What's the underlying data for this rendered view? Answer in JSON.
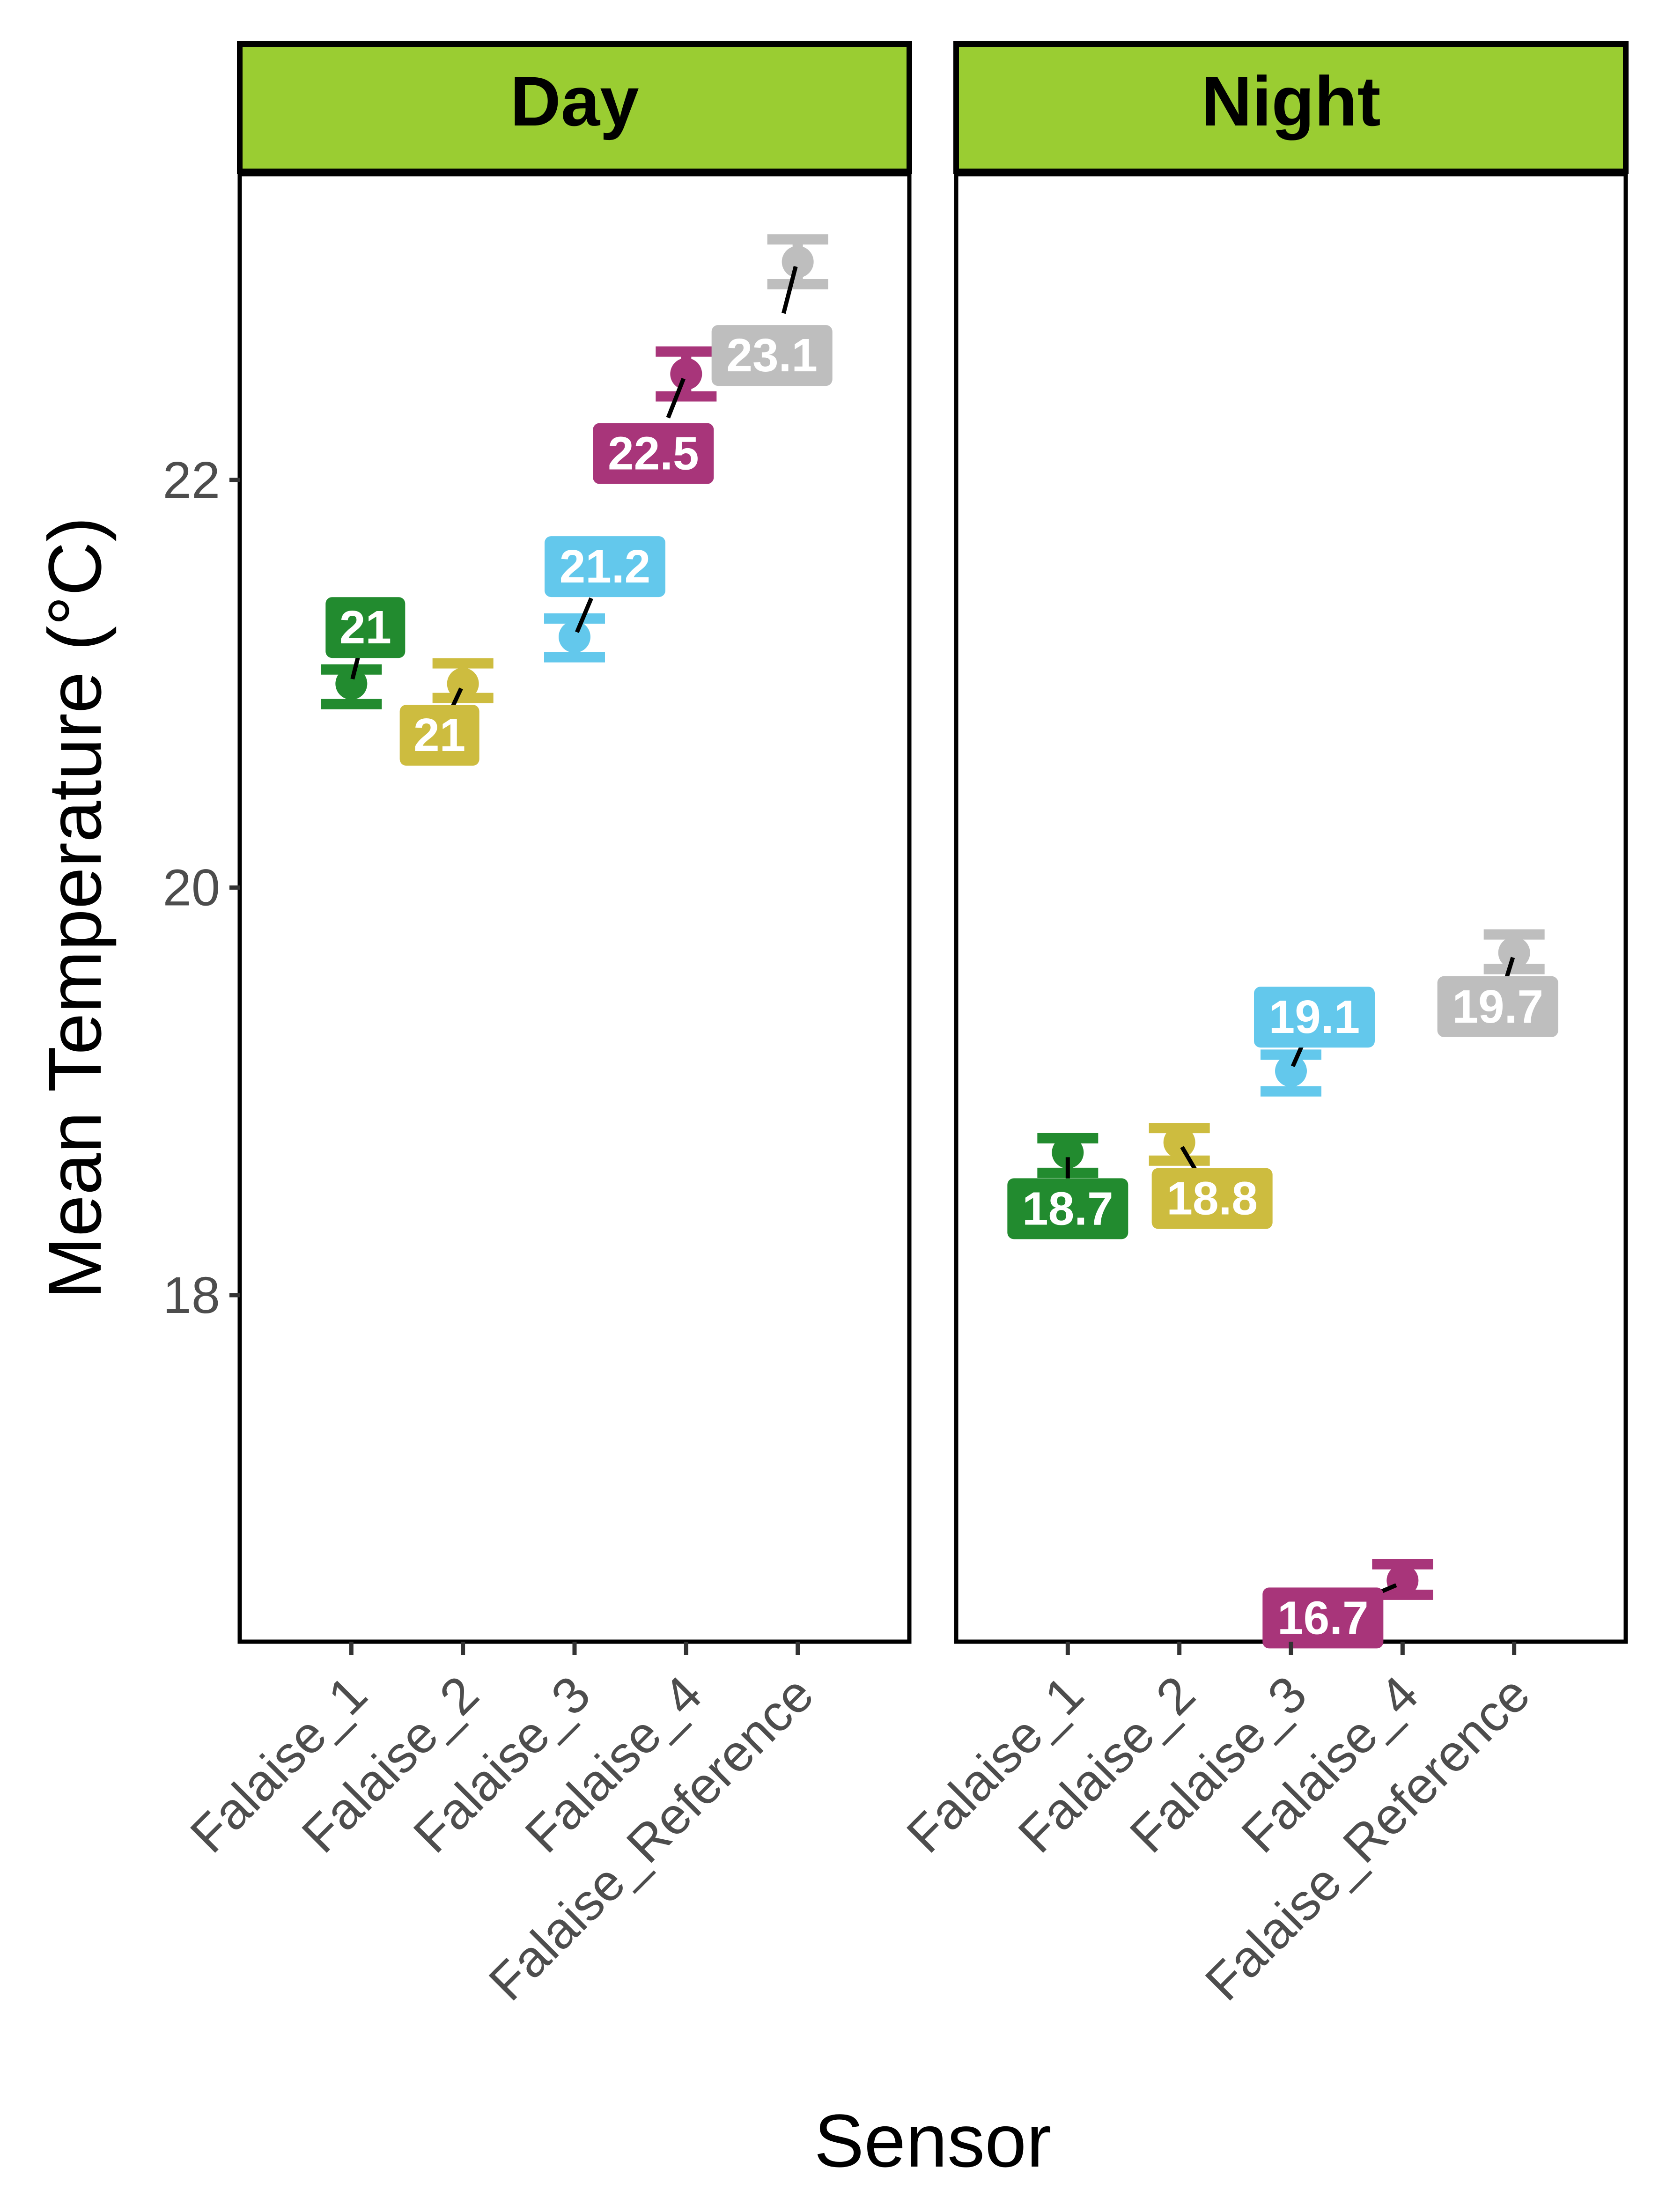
{
  "chart_data": {
    "type": "scatter",
    "xlabel": "Sensor",
    "ylabel": "Mean Temperature (°C)",
    "categories": [
      "Falaise_1",
      "Falaise_2",
      "Falaise_3",
      "Falaise_4",
      "Falaise_Reference"
    ],
    "ylim": [
      16.3,
      23.5
    ],
    "yticks": [
      18,
      20,
      22
    ],
    "grid": false,
    "legend": "none",
    "colors": [
      "#228B2F",
      "#CDBC3F",
      "#63C8EC",
      "#A8357A",
      "#BEBEBE"
    ],
    "panels": [
      {
        "name": "Day",
        "points": [
          {
            "category": "Falaise_1",
            "mean": 21.0,
            "lower": 20.9,
            "upper": 21.07,
            "label": "21"
          },
          {
            "category": "Falaise_2",
            "mean": 21.0,
            "lower": 20.93,
            "upper": 21.1,
            "label": "21"
          },
          {
            "category": "Falaise_3",
            "mean": 21.23,
            "lower": 21.13,
            "upper": 21.32,
            "label": "21.2"
          },
          {
            "category": "Falaise_4",
            "mean": 22.52,
            "lower": 22.41,
            "upper": 22.63,
            "label": "22.5"
          },
          {
            "category": "Falaise_Reference",
            "mean": 23.07,
            "lower": 22.96,
            "upper": 23.18,
            "label": "23.1"
          }
        ]
      },
      {
        "name": "Night",
        "points": [
          {
            "category": "Falaise_1",
            "mean": 18.7,
            "lower": 18.6,
            "upper": 18.77,
            "label": "18.7"
          },
          {
            "category": "Falaise_2",
            "mean": 18.75,
            "lower": 18.66,
            "upper": 18.82,
            "label": "18.8"
          },
          {
            "category": "Falaise_3",
            "mean": 19.1,
            "lower": 19.0,
            "upper": 19.18,
            "label": "19.1"
          },
          {
            "category": "Falaise_4",
            "mean": 16.6,
            "lower": 16.53,
            "upper": 16.68,
            "label": "16.7"
          },
          {
            "category": "Falaise_Reference",
            "mean": 19.68,
            "lower": 19.6,
            "upper": 19.77,
            "label": "19.7"
          }
        ]
      }
    ]
  }
}
